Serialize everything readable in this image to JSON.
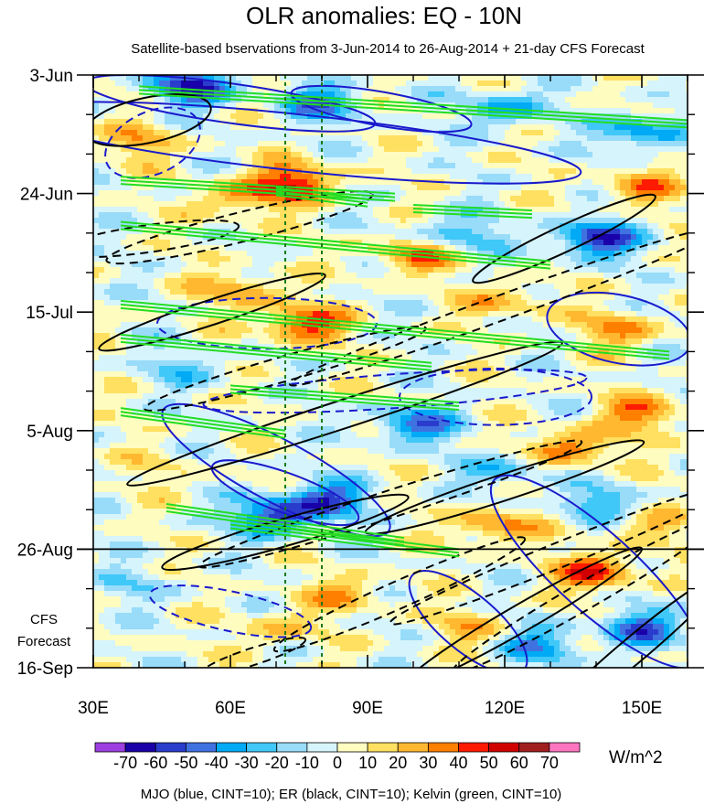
{
  "chart_data": {
    "type": "heatmap",
    "title": "OLR anomalies: EQ - 10N",
    "subtitle": "Satellite-based bservations from 3-Jun-2014 to 26-Aug-2014 + 21-day CFS Forecast",
    "x_axis": {
      "range": [
        30,
        160
      ],
      "ticks": [
        {
          "value": 30,
          "label": "30E"
        },
        {
          "value": 60,
          "label": "60E"
        },
        {
          "value": 90,
          "label": "90E"
        },
        {
          "value": 120,
          "label": "120E"
        },
        {
          "value": 150,
          "label": "150E"
        }
      ]
    },
    "y_axis": {
      "range_days": [
        0,
        105
      ],
      "ticks": [
        {
          "day": 0,
          "label": "3-Jun"
        },
        {
          "day": 21,
          "label": "24-Jun"
        },
        {
          "day": 42,
          "label": "15-Jul"
        },
        {
          "day": 63,
          "label": "5-Aug"
        },
        {
          "day": 84,
          "label": "26-Aug"
        },
        {
          "day": 105,
          "label": "16-Sep"
        }
      ]
    },
    "forecast_start_day": 84,
    "forecast_label_line1": "CFS",
    "forecast_label_line2": "Forecast",
    "reference_longitudes": [
      72,
      80
    ],
    "colorbar": {
      "levels": [
        -70,
        -60,
        -50,
        -40,
        -30,
        -20,
        -10,
        0,
        10,
        20,
        30,
        40,
        50,
        60,
        70
      ],
      "colors": [
        "#9c3ee0",
        "#1a00a8",
        "#2a3ccc",
        "#3f72e0",
        "#00aaf5",
        "#3fc8f8",
        "#98dcfa",
        "#d6f4fb",
        "#fffcc0",
        "#ffe060",
        "#ffb830",
        "#ff7f00",
        "#ff1a00",
        "#d00000",
        "#a01e1e",
        "#ff75c0"
      ],
      "units": "W/m^2"
    },
    "legend_text": "MJO (blue, CINT=10); ER (black, CINT=10); Kelvin (green, CINT=10)",
    "series": [
      {
        "name": "MJO",
        "color": "#1a1acc",
        "cint": 10
      },
      {
        "name": "ER",
        "color": "#000000",
        "cint": 10
      },
      {
        "name": "Kelvin",
        "color": "#22dd22",
        "cint": 10
      }
    ],
    "anomaly_features": [
      {
        "lon": 52,
        "day": 2,
        "value": -60
      },
      {
        "lon": 80,
        "day": 5,
        "value": -40
      },
      {
        "lon": 120,
        "day": 6,
        "value": -35
      },
      {
        "lon": 150,
        "day": 10,
        "value": -40
      },
      {
        "lon": 40,
        "day": 12,
        "value": 25
      },
      {
        "lon": 74,
        "day": 19,
        "value": 50
      },
      {
        "lon": 62,
        "day": 22,
        "value": 30
      },
      {
        "lon": 140,
        "day": 29,
        "value": -60
      },
      {
        "lon": 150,
        "day": 20,
        "value": 30
      },
      {
        "lon": 110,
        "day": 28,
        "value": -30
      },
      {
        "lon": 76,
        "day": 44,
        "value": 50
      },
      {
        "lon": 62,
        "day": 38,
        "value": 30
      },
      {
        "lon": 100,
        "day": 32,
        "value": 35
      },
      {
        "lon": 120,
        "day": 40,
        "value": 25
      },
      {
        "lon": 145,
        "day": 45,
        "value": 30
      },
      {
        "lon": 135,
        "day": 66,
        "value": 40
      },
      {
        "lon": 150,
        "day": 60,
        "value": 35
      },
      {
        "lon": 100,
        "day": 62,
        "value": -45
      },
      {
        "lon": 120,
        "day": 70,
        "value": -25
      },
      {
        "lon": 140,
        "day": 76,
        "value": -30
      },
      {
        "lon": 70,
        "day": 78,
        "value": -60
      },
      {
        "lon": 82,
        "day": 75,
        "value": -45
      },
      {
        "lon": 45,
        "day": 70,
        "value": 10
      },
      {
        "lon": 140,
        "day": 88,
        "value": 45
      },
      {
        "lon": 118,
        "day": 80,
        "value": 35
      },
      {
        "lon": 150,
        "day": 98,
        "value": -45
      },
      {
        "lon": 128,
        "day": 101,
        "value": -35
      },
      {
        "lon": 85,
        "day": 92,
        "value": 25
      },
      {
        "lon": 70,
        "day": 98,
        "value": 20
      },
      {
        "lon": 112,
        "day": 98,
        "value": 20
      },
      {
        "lon": 40,
        "day": 90,
        "value": -15
      },
      {
        "lon": 50,
        "day": 52,
        "value": -20
      },
      {
        "lon": 150,
        "day": 80,
        "value": 20
      }
    ]
  }
}
